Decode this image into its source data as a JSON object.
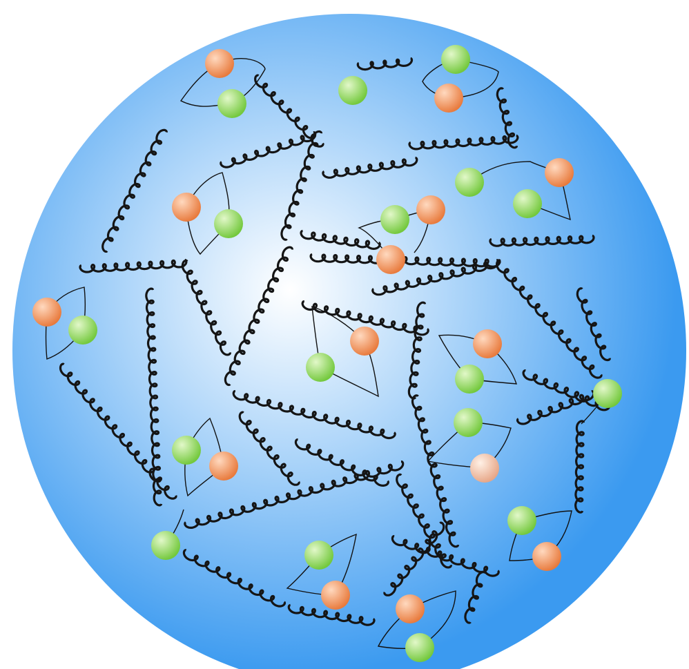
{
  "colors": {
    "background": "#ffffff",
    "sphere_center": "#ffffff",
    "sphere_mid": "#a9d3f9",
    "sphere_edge": "#3b9af0",
    "gluon": "#151515",
    "quark_orange": "#e87a3c",
    "quark_orange_highlight": "#ffd9bf",
    "quark_green": "#73c83c",
    "quark_green_highlight": "#e2f8c9",
    "quark_pale": "#e7a687",
    "connector": "#111111"
  },
  "icons": {
    "sphere": "sphere-icon",
    "gluon": "gluon-spring-icon",
    "quark": "quark-ball-icon"
  }
}
